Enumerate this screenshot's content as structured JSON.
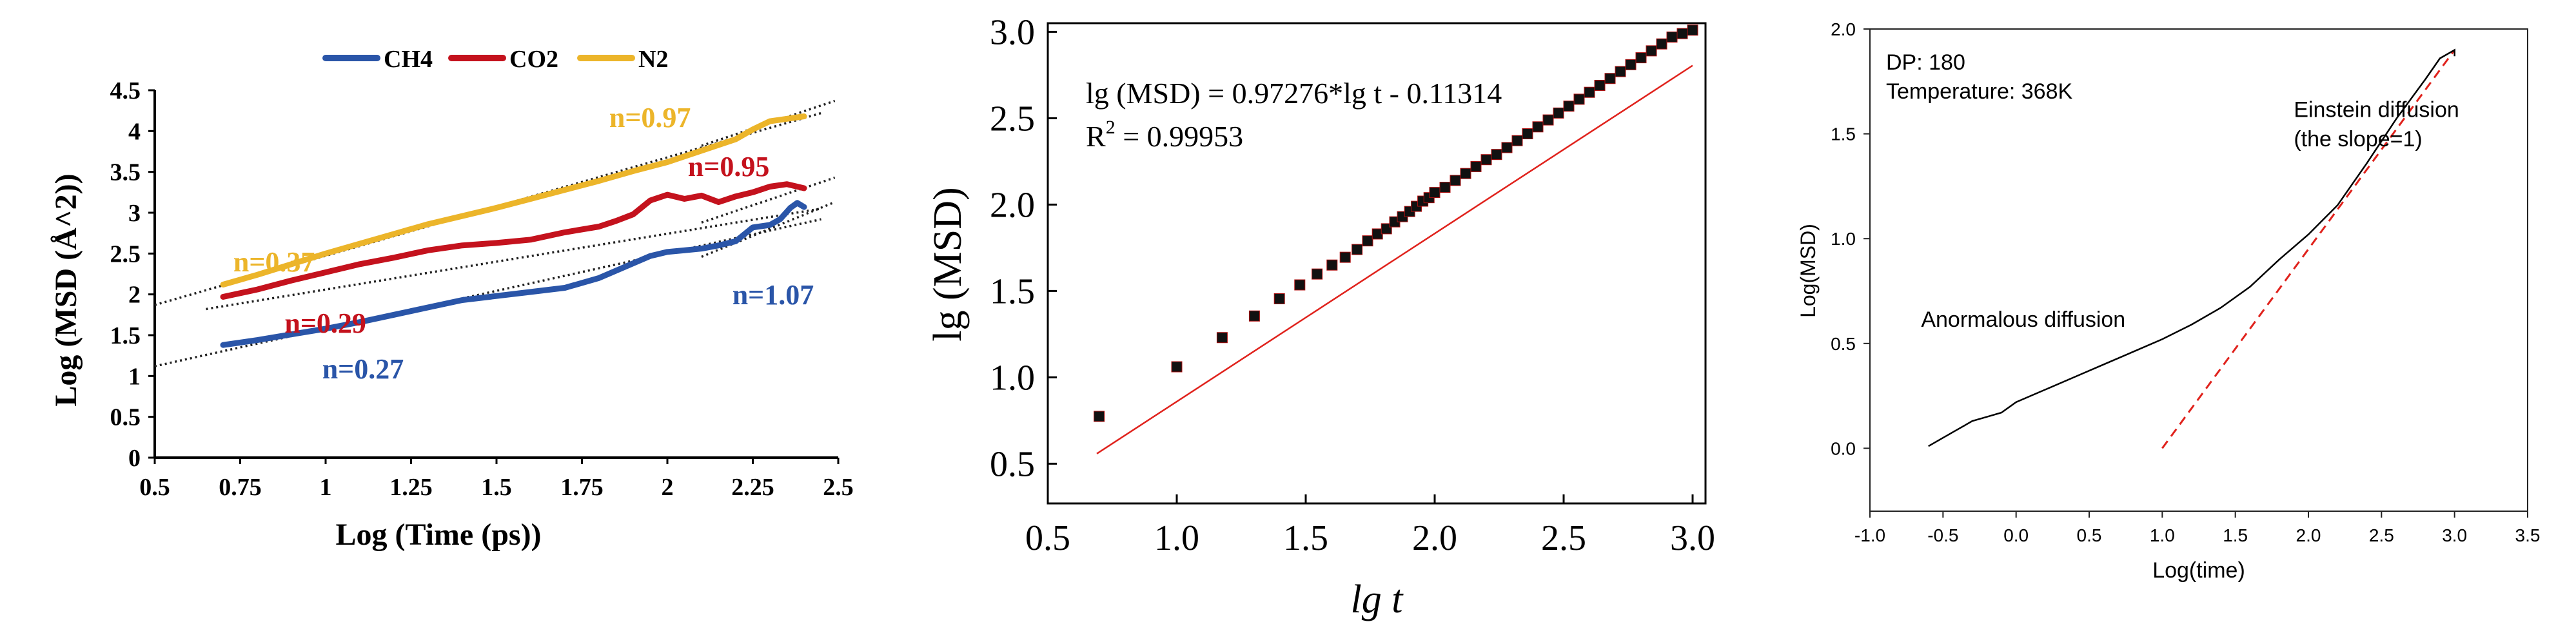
{
  "colors": {
    "ch4": "#2a55a8",
    "co2": "#c4121d",
    "n2": "#ecb52a",
    "fit_dotted": "#222222",
    "fit_red": "#e0221c",
    "axis": "#000000"
  },
  "chart_data": [
    {
      "type": "line",
      "xlabel": "Log (Time (ps))",
      "ylabel": "Log (MSD (Å^2))",
      "xlim": [
        0.5,
        2.5
      ],
      "ylim": [
        0,
        4.5
      ],
      "x_ticks": [
        "0.5",
        "0.75",
        "1",
        "1.25",
        "1.5",
        "1.75",
        "2",
        "2.25",
        "2.5"
      ],
      "y_ticks": [
        "0",
        "0.5",
        "1",
        "1.5",
        "2",
        "2.5",
        "3",
        "3.5",
        "4",
        "4.5"
      ],
      "legend_position": "top",
      "series": [
        {
          "name": "CH4",
          "color": "#2a55a8",
          "x": [
            0.7,
            0.8,
            0.9,
            1.0,
            1.1,
            1.2,
            1.3,
            1.4,
            1.5,
            1.6,
            1.7,
            1.8,
            1.9,
            1.95,
            2.0,
            2.05,
            2.1,
            2.15,
            2.2,
            2.25,
            2.3,
            2.33,
            2.36,
            2.38,
            2.4
          ],
          "y": [
            1.38,
            1.44,
            1.51,
            1.58,
            1.66,
            1.75,
            1.84,
            1.93,
            1.98,
            2.03,
            2.08,
            2.2,
            2.38,
            2.47,
            2.52,
            2.54,
            2.56,
            2.6,
            2.65,
            2.82,
            2.85,
            2.92,
            3.06,
            3.12,
            3.07
          ]
        },
        {
          "name": "CO2",
          "color": "#c4121d",
          "x": [
            0.7,
            0.8,
            0.9,
            1.0,
            1.1,
            1.2,
            1.3,
            1.4,
            1.5,
            1.6,
            1.7,
            1.8,
            1.85,
            1.9,
            1.95,
            2.0,
            2.05,
            2.1,
            2.15,
            2.2,
            2.25,
            2.3,
            2.35,
            2.4
          ],
          "y": [
            1.97,
            2.06,
            2.17,
            2.27,
            2.37,
            2.45,
            2.54,
            2.6,
            2.63,
            2.67,
            2.76,
            2.83,
            2.9,
            2.98,
            3.15,
            3.22,
            3.17,
            3.21,
            3.13,
            3.2,
            3.25,
            3.32,
            3.35,
            3.3
          ]
        },
        {
          "name": "N2",
          "color": "#ecb52a",
          "x": [
            0.7,
            0.8,
            0.9,
            1.0,
            1.1,
            1.2,
            1.3,
            1.4,
            1.5,
            1.6,
            1.7,
            1.8,
            1.9,
            2.0,
            2.1,
            2.2,
            2.25,
            2.3,
            2.35,
            2.4
          ],
          "y": [
            2.12,
            2.24,
            2.37,
            2.5,
            2.62,
            2.74,
            2.86,
            2.96,
            3.06,
            3.17,
            3.28,
            3.39,
            3.51,
            3.62,
            3.76,
            3.9,
            4.02,
            4.12,
            4.15,
            4.18
          ]
        }
      ],
      "fit_lines": [
        {
          "x": [
            0.5,
            2.45
          ],
          "y": [
            1.12,
            2.92
          ]
        },
        {
          "x": [
            0.65,
            2.45
          ],
          "y": [
            1.82,
            3.05
          ]
        },
        {
          "x": [
            0.5,
            2.45
          ],
          "y": [
            1.87,
            4.22
          ]
        },
        {
          "x": [
            2.1,
            2.49
          ],
          "y": [
            2.46,
            3.13
          ]
        },
        {
          "x": [
            2.1,
            2.49
          ],
          "y": [
            2.88,
            3.43
          ]
        },
        {
          "x": [
            2.1,
            2.49
          ],
          "y": [
            3.82,
            4.37
          ]
        }
      ],
      "annotations": [
        {
          "text": "n=0.97",
          "x": 1.83,
          "y": 4.05,
          "color": "#ecb52a"
        },
        {
          "text": "n=0.37",
          "x": 0.73,
          "y": 2.28,
          "color": "#ecb52a"
        },
        {
          "text": "n=0.95",
          "x": 2.06,
          "y": 3.45,
          "color": "#c4121d"
        },
        {
          "text": "n=0.29",
          "x": 0.88,
          "y": 1.53,
          "color": "#c4121d"
        },
        {
          "text": "n=1.07",
          "x": 2.19,
          "y": 1.88,
          "color": "#2a55a8"
        },
        {
          "text": "n=0.27",
          "x": 0.99,
          "y": 0.97,
          "color": "#2a55a8"
        }
      ]
    },
    {
      "type": "scatter",
      "xlabel": "lg t",
      "ylabel": "lg (MSD)",
      "xlim": [
        0.5,
        3.05
      ],
      "ylim": [
        0.27,
        3.05
      ],
      "x_ticks": [
        "0.5",
        "1.0",
        "1.5",
        "2.0",
        "2.5",
        "3.0"
      ],
      "y_ticks": [
        "0.5",
        "1.0",
        "1.5",
        "2.0",
        "2.5",
        "3.0"
      ],
      "equation": "lg (MSD) = 0.97276*lg t - 0.11314",
      "r_squared_label": "R",
      "r_squared_sup": "2",
      "r_squared_value": " = 0.99953",
      "slope": 0.97276,
      "intercept": -0.11314,
      "fit_range": [
        0.69,
        3.0
      ],
      "series": [
        {
          "name": "",
          "x": [
            0.699,
            1.0,
            1.176,
            1.301,
            1.398,
            1.477,
            1.544,
            1.602,
            1.653,
            1.699,
            1.74,
            1.778,
            1.813,
            1.845,
            1.875,
            1.903,
            1.929,
            1.954,
            1.978,
            2.0,
            2.04,
            2.08,
            2.12,
            2.16,
            2.2,
            2.24,
            2.28,
            2.32,
            2.36,
            2.4,
            2.44,
            2.48,
            2.52,
            2.56,
            2.6,
            2.64,
            2.68,
            2.72,
            2.76,
            2.8,
            2.84,
            2.88,
            2.92,
            2.96,
            3.0
          ],
          "y": [
            0.774,
            1.061,
            1.23,
            1.355,
            1.455,
            1.535,
            1.598,
            1.65,
            1.695,
            1.74,
            1.79,
            1.83,
            1.86,
            1.9,
            1.93,
            1.96,
            1.99,
            2.02,
            2.04,
            2.07,
            2.1,
            2.14,
            2.18,
            2.22,
            2.26,
            2.29,
            2.33,
            2.37,
            2.41,
            2.45,
            2.49,
            2.53,
            2.57,
            2.61,
            2.65,
            2.69,
            2.73,
            2.77,
            2.81,
            2.85,
            2.89,
            2.93,
            2.97,
            2.99,
            3.01
          ]
        }
      ]
    },
    {
      "type": "line",
      "xlabel": "Log(time)",
      "ylabel": "Log(MSD)",
      "xlim": [
        -1.0,
        3.5
      ],
      "ylim": [
        -0.3,
        2.0
      ],
      "x_ticks": [
        "-1.0",
        "-0.5",
        "0.0",
        "0.5",
        "1.0",
        "1.5",
        "2.0",
        "2.5",
        "3.0",
        "3.5"
      ],
      "y_ticks": [
        "0.0",
        "0.5",
        "1.0",
        "1.5",
        "2.0"
      ],
      "info_lines": [
        "DP: 180",
        "Temperature: 368K"
      ],
      "annotations": [
        {
          "text": "Einstein diffusion",
          "x": 1.9,
          "y": 1.58
        },
        {
          "text": "(the slope=1)",
          "x": 1.9,
          "y": 1.44
        },
        {
          "text": "Anormalous diffusion",
          "x": -0.65,
          "y": 0.58
        }
      ],
      "series": [
        {
          "name": "",
          "color": "#000000",
          "x": [
            -0.6,
            -0.5,
            -0.4,
            -0.3,
            -0.2,
            -0.1,
            0.0,
            0.1,
            0.2,
            0.4,
            0.6,
            0.8,
            1.0,
            1.2,
            1.4,
            1.6,
            1.8,
            2.0,
            2.1,
            2.2,
            2.4,
            2.6,
            2.8,
            2.9,
            3.0,
            3.0
          ],
          "y": [
            0.01,
            0.05,
            0.09,
            0.13,
            0.15,
            0.17,
            0.22,
            0.25,
            0.28,
            0.34,
            0.4,
            0.46,
            0.52,
            0.59,
            0.67,
            0.77,
            0.9,
            1.02,
            1.09,
            1.16,
            1.36,
            1.57,
            1.76,
            1.86,
            1.9,
            1.87
          ]
        }
      ],
      "fit_line": {
        "x": [
          1.0,
          3.0
        ],
        "y": [
          0.0,
          1.9
        ]
      }
    }
  ]
}
